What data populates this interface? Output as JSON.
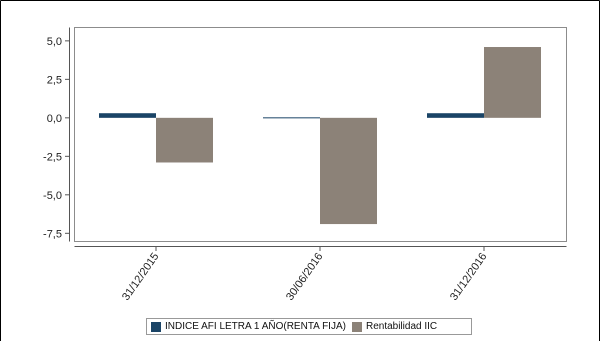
{
  "colors": {
    "series1": "#1a4466",
    "series2": "#8c8278",
    "axis": "#555555",
    "frame": "#000000"
  },
  "chart_data": {
    "type": "bar",
    "categories": [
      "31/12/2015",
      "30/06/2016",
      "31/12/2016"
    ],
    "series": [
      {
        "name": "INDICE AFI LETRA 1 AÑO(RENTA FIJA)",
        "values": [
          0.3,
          0.0,
          0.3
        ]
      },
      {
        "name": "Rentabilidad IIC",
        "values": [
          -2.9,
          -6.9,
          4.6
        ]
      }
    ],
    "yticks": [
      "5,0",
      "2,5",
      "0,0",
      "-2,5",
      "-5,0",
      "-7,5"
    ],
    "ytick_values": [
      5.0,
      2.5,
      0.0,
      -2.5,
      -5.0,
      -7.5
    ],
    "ylim": [
      -8.0,
      5.9
    ],
    "legend_position": "bottom",
    "grid": false
  }
}
